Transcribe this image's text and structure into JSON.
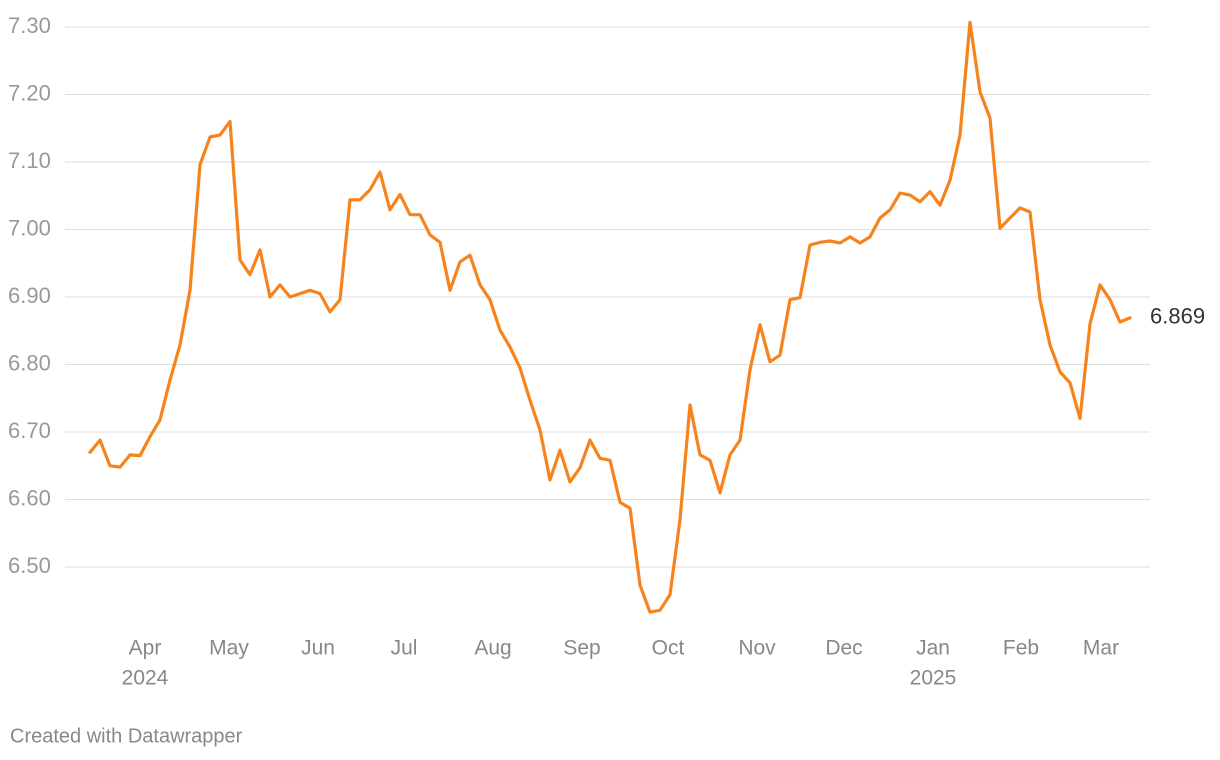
{
  "chart_data": {
    "type": "line",
    "color": "#f7831c",
    "grid": true,
    "footer": "Created with Datawrapper",
    "ylim": [
      6.4,
      7.32
    ],
    "yticks": [
      {
        "value": 6.5,
        "label": "6.50"
      },
      {
        "value": 6.6,
        "label": "6.60"
      },
      {
        "value": 6.7,
        "label": "6.70"
      },
      {
        "value": 6.8,
        "label": "6.80"
      },
      {
        "value": 6.9,
        "label": "6.90"
      },
      {
        "value": 7.0,
        "label": "7.00"
      },
      {
        "value": 7.1,
        "label": "7.10"
      },
      {
        "value": 7.2,
        "label": "7.20"
      },
      {
        "value": 7.3,
        "label": "7.30"
      }
    ],
    "xlim": [
      -2.5,
      106
    ],
    "xticks": [
      {
        "value": 5.5,
        "label": "Apr"
      },
      {
        "value": 13.9,
        "label": "May"
      },
      {
        "value": 22.8,
        "label": "Jun"
      },
      {
        "value": 31.4,
        "label": "Jul"
      },
      {
        "value": 40.3,
        "label": "Aug"
      },
      {
        "value": 49.2,
        "label": "Sep"
      },
      {
        "value": 57.8,
        "label": "Oct"
      },
      {
        "value": 66.7,
        "label": "Nov"
      },
      {
        "value": 75.4,
        "label": "Dec"
      },
      {
        "value": 84.3,
        "label": "Jan"
      },
      {
        "value": 93.1,
        "label": "Feb"
      },
      {
        "value": 101.1,
        "label": "Mar"
      }
    ],
    "xtick_years": [
      {
        "value": 5.5,
        "label": "2024"
      },
      {
        "value": 84.3,
        "label": "2025"
      }
    ],
    "values": [
      6.67,
      6.688,
      6.65,
      6.648,
      6.666,
      6.665,
      6.693,
      6.718,
      6.777,
      6.829,
      6.91,
      7.096,
      7.137,
      7.14,
      7.16,
      6.955,
      6.933,
      6.97,
      6.9,
      6.918,
      6.9,
      6.905,
      6.91,
      6.905,
      6.878,
      6.896,
      7.044,
      7.044,
      7.059,
      7.085,
      7.029,
      7.052,
      7.022,
      7.022,
      6.992,
      6.981,
      6.91,
      6.952,
      6.962,
      6.918,
      6.896,
      6.851,
      6.826,
      6.795,
      6.747,
      6.703,
      6.629,
      6.673,
      6.626,
      6.647,
      6.688,
      6.661,
      6.658,
      6.596,
      6.587,
      6.473,
      6.433,
      6.436,
      6.459,
      6.57,
      6.74,
      6.666,
      6.658,
      6.61,
      6.666,
      6.688,
      6.792,
      6.859,
      6.804,
      6.814,
      6.896,
      6.899,
      6.977,
      6.981,
      6.983,
      6.98,
      6.989,
      6.98,
      6.989,
      7.017,
      7.029,
      7.054,
      7.051,
      7.041,
      7.056,
      7.036,
      7.073,
      7.14,
      7.307,
      7.204,
      7.165,
      7.002,
      7.017,
      7.032,
      7.026,
      6.896,
      6.829,
      6.789,
      6.773,
      6.72,
      6.86,
      6.918,
      6.896,
      6.863,
      6.869
    ]
  }
}
